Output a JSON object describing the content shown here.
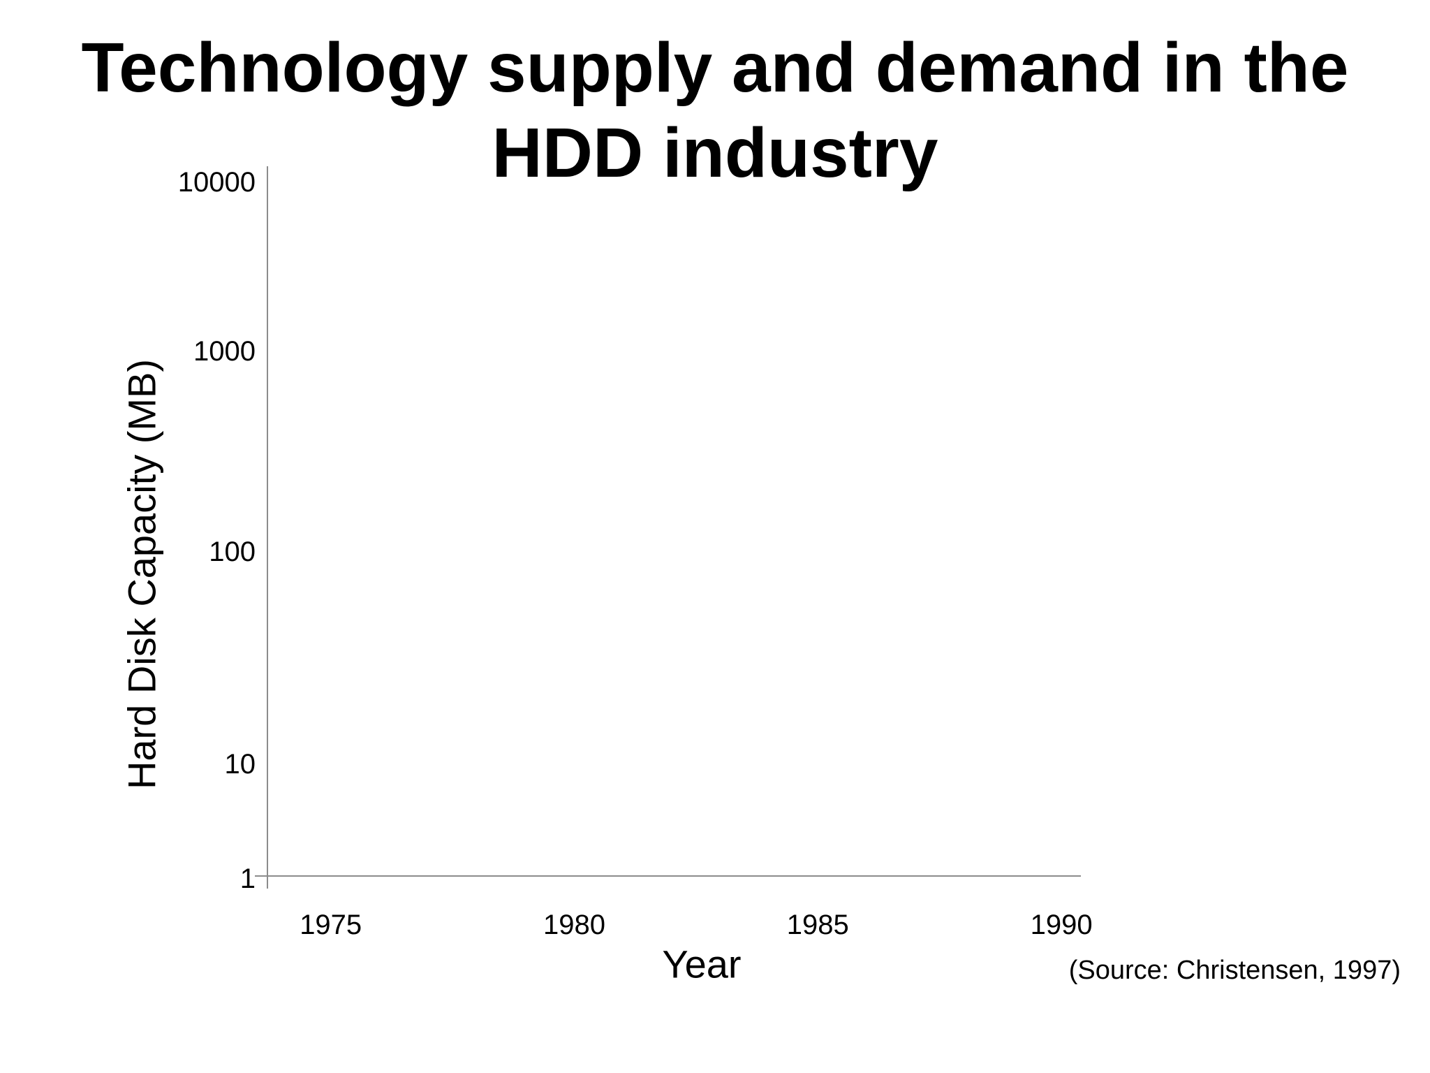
{
  "chart_data": {
    "type": "line",
    "title": "Technology supply and demand in the HDD industry",
    "xlabel": "Year",
    "ylabel": "Hard Disk Capacity (MB)",
    "x_ticks": [
      "1975",
      "1980",
      "1985",
      "1990"
    ],
    "y_ticks": [
      "1",
      "10",
      "100",
      "1000",
      "10000"
    ],
    "y_scale": "log",
    "xlim": [
      1973.7,
      1990.4
    ],
    "ylim": [
      1,
      10000
    ],
    "grid": false,
    "series": []
  },
  "source": "(Source: Christensen, 1997)",
  "colors": {
    "axis": "#8c8c8c",
    "text": "#000000",
    "background": "#ffffff"
  }
}
